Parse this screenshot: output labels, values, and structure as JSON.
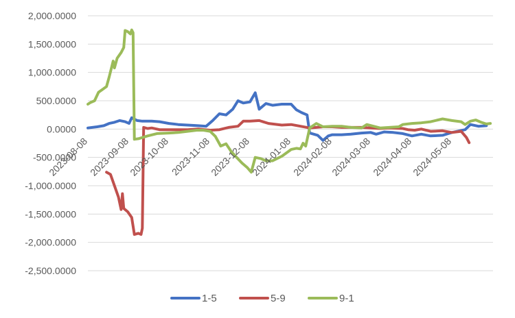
{
  "chart_data": {
    "type": "line",
    "title": "",
    "xlabel": "",
    "ylabel": "",
    "ylim": [
      -2500,
      2000
    ],
    "y_ticks": [
      "2,000.0000",
      "1,500.0000",
      "1,000.0000",
      "500.0000",
      "0.0000",
      "-500.0000",
      "-1,000.0000",
      "-1,500.0000",
      "-2,000.0000",
      "-2,500.0000"
    ],
    "x_ticks": [
      "2023-08-08",
      "2023-09-08",
      "2023-10-08",
      "2023-11-08",
      "2023-12-08",
      "2024-01-08",
      "2024-02-08",
      "2024-03-08",
      "2024-04-08",
      "2024-05-08"
    ],
    "xlim": [
      "2023-08-08",
      "2024-06-08"
    ],
    "grid": "horizontal",
    "legend_position": "bottom",
    "series": [
      {
        "name": "1-5",
        "color": "#4472C4",
        "points": [
          [
            "2023-08-08",
            20
          ],
          [
            "2023-08-15",
            40
          ],
          [
            "2023-08-20",
            60
          ],
          [
            "2023-08-24",
            100
          ],
          [
            "2023-08-28",
            120
          ],
          [
            "2023-09-01",
            150
          ],
          [
            "2023-09-05",
            130
          ],
          [
            "2023-09-08",
            100
          ],
          [
            "2023-09-10",
            200
          ],
          [
            "2023-09-14",
            150
          ],
          [
            "2023-09-18",
            140
          ],
          [
            "2023-09-25",
            140
          ],
          [
            "2023-10-01",
            130
          ],
          [
            "2023-10-08",
            100
          ],
          [
            "2023-10-15",
            80
          ],
          [
            "2023-10-22",
            70
          ],
          [
            "2023-10-30",
            60
          ],
          [
            "2023-11-05",
            50
          ],
          [
            "2023-11-10",
            150
          ],
          [
            "2023-11-15",
            270
          ],
          [
            "2023-11-20",
            250
          ],
          [
            "2023-11-25",
            350
          ],
          [
            "2023-11-29",
            500
          ],
          [
            "2023-12-03",
            460
          ],
          [
            "2023-12-08",
            480
          ],
          [
            "2023-12-12",
            640
          ],
          [
            "2023-12-15",
            350
          ],
          [
            "2023-12-20",
            450
          ],
          [
            "2023-12-25",
            420
          ],
          [
            "2024-01-01",
            440
          ],
          [
            "2024-01-08",
            440
          ],
          [
            "2024-01-12",
            340
          ],
          [
            "2024-01-16",
            290
          ],
          [
            "2024-01-20",
            250
          ],
          [
            "2024-01-22",
            -70
          ],
          [
            "2024-01-28",
            -110
          ],
          [
            "2024-02-01",
            -200
          ],
          [
            "2024-02-05",
            -120
          ],
          [
            "2024-02-08",
            -100
          ],
          [
            "2024-02-15",
            -100
          ],
          [
            "2024-02-22",
            -90
          ],
          [
            "2024-03-01",
            -70
          ],
          [
            "2024-03-08",
            -60
          ],
          [
            "2024-03-12",
            -90
          ],
          [
            "2024-03-18",
            -50
          ],
          [
            "2024-03-25",
            -60
          ],
          [
            "2024-04-01",
            -80
          ],
          [
            "2024-04-08",
            -120
          ],
          [
            "2024-04-15",
            -90
          ],
          [
            "2024-04-22",
            -120
          ],
          [
            "2024-05-01",
            -110
          ],
          [
            "2024-05-08",
            -60
          ],
          [
            "2024-05-14",
            -30
          ],
          [
            "2024-05-18",
            -10
          ],
          [
            "2024-05-22",
            80
          ],
          [
            "2024-05-28",
            50
          ],
          [
            "2024-06-03",
            60
          ]
        ]
      },
      {
        "name": "5-9",
        "color": "#C0504D",
        "points": [
          [
            "2023-08-22",
            -760
          ],
          [
            "2023-08-25",
            -800
          ],
          [
            "2023-08-28",
            -1000
          ],
          [
            "2023-08-31",
            -1200
          ],
          [
            "2023-09-02",
            -1420
          ],
          [
            "2023-09-03",
            -1140
          ],
          [
            "2023-09-04",
            -1400
          ],
          [
            "2023-09-07",
            -1460
          ],
          [
            "2023-09-10",
            -1560
          ],
          [
            "2023-09-12",
            -1860
          ],
          [
            "2023-09-15",
            -1840
          ],
          [
            "2023-09-17",
            -1860
          ],
          [
            "2023-09-18",
            -1750
          ],
          [
            "2023-09-19",
            30
          ],
          [
            "2023-09-22",
            10
          ],
          [
            "2023-09-25",
            20
          ],
          [
            "2023-10-01",
            -10
          ],
          [
            "2023-10-08",
            -10
          ],
          [
            "2023-10-15",
            -10
          ],
          [
            "2023-10-22",
            -10
          ],
          [
            "2023-10-30",
            0
          ],
          [
            "2023-11-08",
            -20
          ],
          [
            "2023-11-15",
            -10
          ],
          [
            "2023-11-22",
            30
          ],
          [
            "2023-11-29",
            50
          ],
          [
            "2023-12-03",
            140
          ],
          [
            "2023-12-08",
            140
          ],
          [
            "2023-12-15",
            150
          ],
          [
            "2023-12-22",
            100
          ],
          [
            "2024-01-01",
            70
          ],
          [
            "2024-01-08",
            80
          ],
          [
            "2024-01-15",
            50
          ],
          [
            "2024-01-22",
            20
          ],
          [
            "2024-02-01",
            40
          ],
          [
            "2024-02-08",
            40
          ],
          [
            "2024-02-15",
            30
          ],
          [
            "2024-02-22",
            30
          ],
          [
            "2024-03-01",
            30
          ],
          [
            "2024-03-08",
            20
          ],
          [
            "2024-03-15",
            10
          ],
          [
            "2024-03-22",
            20
          ],
          [
            "2024-04-01",
            10
          ],
          [
            "2024-04-05",
            -10
          ],
          [
            "2024-04-10",
            -20
          ],
          [
            "2024-04-15",
            0
          ],
          [
            "2024-04-22",
            -40
          ],
          [
            "2024-05-01",
            -30
          ],
          [
            "2024-05-08",
            -60
          ],
          [
            "2024-05-15",
            -40
          ],
          [
            "2024-05-19",
            -150
          ],
          [
            "2024-05-21",
            -240
          ]
        ]
      },
      {
        "name": "9-1",
        "color": "#9BBB59",
        "points": [
          [
            "2023-08-08",
            440
          ],
          [
            "2023-08-10",
            470
          ],
          [
            "2023-08-13",
            500
          ],
          [
            "2023-08-16",
            650
          ],
          [
            "2023-08-19",
            700
          ],
          [
            "2023-08-22",
            750
          ],
          [
            "2023-08-24",
            920
          ],
          [
            "2023-08-27",
            1200
          ],
          [
            "2023-08-28",
            1080
          ],
          [
            "2023-08-30",
            1250
          ],
          [
            "2023-09-02",
            1350
          ],
          [
            "2023-09-04",
            1440
          ],
          [
            "2023-09-05",
            1740
          ],
          [
            "2023-09-07",
            1720
          ],
          [
            "2023-09-09",
            1680
          ],
          [
            "2023-09-10",
            1750
          ],
          [
            "2023-09-11",
            1700
          ],
          [
            "2023-09-12",
            -180
          ],
          [
            "2023-09-15",
            -170
          ],
          [
            "2023-09-18",
            -150
          ],
          [
            "2023-09-22",
            -120
          ],
          [
            "2023-09-29",
            -80
          ],
          [
            "2023-10-08",
            -70
          ],
          [
            "2023-10-15",
            -60
          ],
          [
            "2023-10-22",
            -40
          ],
          [
            "2023-10-29",
            -20
          ],
          [
            "2023-11-03",
            -20
          ],
          [
            "2023-11-08",
            -40
          ],
          [
            "2023-11-12",
            -130
          ],
          [
            "2023-11-16",
            -300
          ],
          [
            "2023-11-20",
            -260
          ],
          [
            "2023-11-24",
            -400
          ],
          [
            "2023-11-28",
            -500
          ],
          [
            "2023-12-02",
            -600
          ],
          [
            "2023-12-06",
            -680
          ],
          [
            "2023-12-09",
            -760
          ],
          [
            "2023-12-12",
            -500
          ],
          [
            "2023-12-16",
            -520
          ],
          [
            "2023-12-20",
            -560
          ],
          [
            "2023-12-25",
            -560
          ],
          [
            "2024-01-01",
            -480
          ],
          [
            "2024-01-08",
            -360
          ],
          [
            "2024-01-12",
            -340
          ],
          [
            "2024-01-15",
            -350
          ],
          [
            "2024-01-17",
            -250
          ],
          [
            "2024-01-19",
            -300
          ],
          [
            "2024-01-22",
            20
          ],
          [
            "2024-01-27",
            100
          ],
          [
            "2024-02-01",
            40
          ],
          [
            "2024-02-08",
            50
          ],
          [
            "2024-02-15",
            50
          ],
          [
            "2024-02-22",
            30
          ],
          [
            "2024-03-01",
            20
          ],
          [
            "2024-03-05",
            80
          ],
          [
            "2024-03-10",
            50
          ],
          [
            "2024-03-15",
            20
          ],
          [
            "2024-03-22",
            30
          ],
          [
            "2024-03-29",
            40
          ],
          [
            "2024-04-01",
            80
          ],
          [
            "2024-04-08",
            100
          ],
          [
            "2024-04-15",
            110
          ],
          [
            "2024-04-22",
            130
          ],
          [
            "2024-05-01",
            180
          ],
          [
            "2024-05-08",
            150
          ],
          [
            "2024-05-15",
            130
          ],
          [
            "2024-05-18",
            80
          ],
          [
            "2024-05-22",
            140
          ],
          [
            "2024-05-26",
            160
          ],
          [
            "2024-05-30",
            120
          ],
          [
            "2024-06-03",
            90
          ],
          [
            "2024-06-06",
            100
          ]
        ]
      }
    ]
  }
}
